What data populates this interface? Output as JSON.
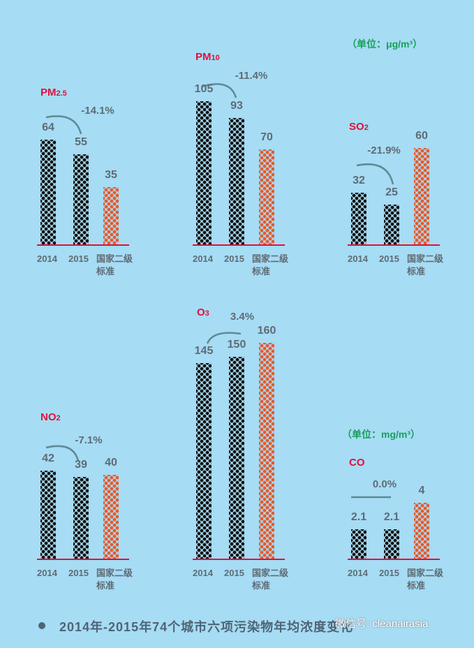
{
  "unit_top": "（单位：μg/m³）",
  "unit_co": "（单位：mg/m³）",
  "categories": [
    "2014",
    "2015",
    "国家二级标准"
  ],
  "caption": "2014年-2015年74个城市六项污染物年均浓度变化",
  "watermark": "微信号: cleanairasia",
  "colors": {
    "background": "#a6dcf4",
    "title": "#e0103c",
    "standard_bar": "#e8582a",
    "year_bar": "#111111",
    "unit": "#1aa05a"
  },
  "chart_data": [
    {
      "type": "bar",
      "title": "PM2.5",
      "title_main": "PM",
      "title_sub": "2.5",
      "change": "-14.1%",
      "categories": [
        "2014",
        "2015",
        "国家二级标准"
      ],
      "values": [
        64,
        55,
        35
      ],
      "labels": [
        "64",
        "55",
        "35"
      ],
      "unit": "μg/m³"
    },
    {
      "type": "bar",
      "title": "PM10",
      "title_main": "PM",
      "title_sub": "10",
      "change": "-11.4%",
      "categories": [
        "2014",
        "2015",
        "国家二级标准"
      ],
      "values": [
        105,
        93,
        70
      ],
      "labels": [
        "105",
        "93",
        "70"
      ],
      "unit": "μg/m³"
    },
    {
      "type": "bar",
      "title": "SO2",
      "title_main": "SO",
      "title_sub": "2",
      "change": "-21.9%",
      "categories": [
        "2014",
        "2015",
        "国家二级标准"
      ],
      "values": [
        32,
        25,
        60
      ],
      "labels": [
        "32",
        "25",
        "60"
      ],
      "unit": "μg/m³"
    },
    {
      "type": "bar",
      "title": "NO2",
      "title_main": "NO",
      "title_sub": "2",
      "change": "-7.1%",
      "categories": [
        "2014",
        "2015",
        "国家二级标准"
      ],
      "values": [
        42,
        39,
        40
      ],
      "labels": [
        "42",
        "39",
        "40"
      ],
      "unit": "μg/m³"
    },
    {
      "type": "bar",
      "title": "O3",
      "title_main": "O",
      "title_sub": "3",
      "change": "3.4%",
      "categories": [
        "2014",
        "2015",
        "国家二级标准"
      ],
      "values": [
        145,
        150,
        160
      ],
      "labels": [
        "145",
        "150",
        "160"
      ],
      "unit": "μg/m³"
    },
    {
      "type": "bar",
      "title": "CO",
      "title_main": "CO",
      "title_sub": "",
      "change": "0.0%",
      "categories": [
        "2014",
        "2015",
        "国家二级标准"
      ],
      "values": [
        2.1,
        2.1,
        4
      ],
      "labels": [
        "2.1",
        "2.1",
        "4"
      ],
      "unit": "mg/m³"
    }
  ]
}
